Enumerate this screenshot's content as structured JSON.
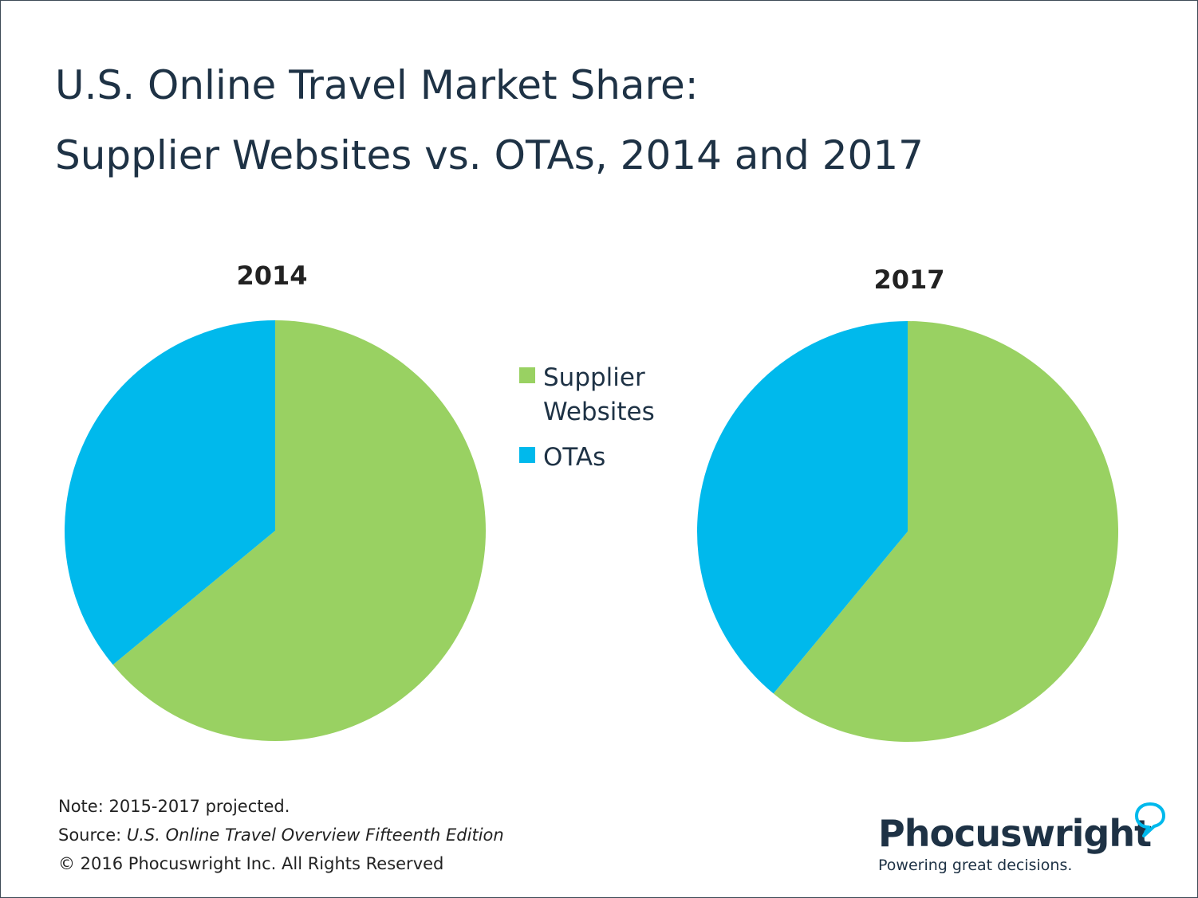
{
  "title_lines": [
    "U.S. Online Travel Market Share:",
    "Supplier Websites vs. OTAs, 2014 and 2017"
  ],
  "chart_data": [
    {
      "type": "pie",
      "title": "2014",
      "categories": [
        "Supplier Websites",
        "OTAs"
      ],
      "values": [
        64,
        36
      ],
      "colors": [
        "#99d162",
        "#00b9ec"
      ]
    },
    {
      "type": "pie",
      "title": "2017",
      "categories": [
        "Supplier Websites",
        "OTAs"
      ],
      "values": [
        61,
        39
      ],
      "colors": [
        "#99d162",
        "#00b9ec"
      ]
    }
  ],
  "legend": {
    "placement": "center",
    "items": [
      {
        "label": "Supplier Websites",
        "color": "#99d162"
      },
      {
        "label": "OTAs",
        "color": "#00b9ec"
      }
    ]
  },
  "footer": {
    "note": "Note: 2015-2017 projected.",
    "source_prefix": "Source: ",
    "source_title": "U.S. Online Travel Overview Fifteenth Edition",
    "copyright": "© 2016 Phocuswright Inc. All Rights Reserved"
  },
  "logo": {
    "name": "Phocuswright",
    "tagline": "Powering great decisions.",
    "accent": "#00b9ec",
    "text_color": "#1e3245"
  }
}
